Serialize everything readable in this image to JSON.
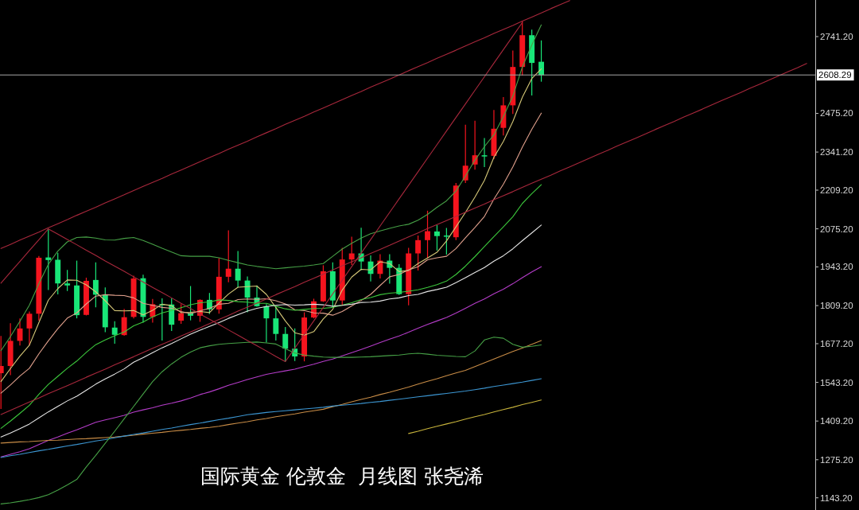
{
  "chart_data": {
    "type": "candlestick",
    "title": "国际黄金 伦敦金  月线图 张尧浠",
    "categories": [
      null,
      null,
      null,
      null,
      null,
      null,
      null,
      null,
      null,
      null,
      null,
      null,
      null,
      null,
      null,
      null,
      null,
      null,
      null,
      null,
      null,
      null,
      null,
      null,
      null,
      null,
      null,
      null,
      null,
      null,
      null,
      null,
      null,
      null,
      null,
      null,
      null,
      null,
      null,
      null,
      null,
      null,
      null,
      null,
      null,
      null,
      null,
      null,
      null,
      null,
      null,
      null,
      null,
      null,
      null,
      null,
      null,
      null,
      null,
      null,
      null,
      null,
      null,
      null,
      null,
      null,
      null,
      null,
      null,
      null,
      null,
      null,
      null,
      null,
      null,
      null,
      null,
      null,
      null,
      null,
      null,
      null,
      null,
      null,
      null,
      null
    ],
    "ohlc": [
      [
        1575,
        1704,
        1451,
        1600
      ],
      [
        1600,
        1748,
        1568,
        1687
      ],
      [
        1687,
        1765,
        1671,
        1730
      ],
      [
        1730,
        1789,
        1671,
        1781
      ],
      [
        1781,
        1981,
        1757,
        1975
      ],
      [
        1976,
        2075,
        1863,
        1967
      ],
      [
        1968,
        1992,
        1848,
        1886
      ],
      [
        1886,
        1933,
        1860,
        1879
      ],
      [
        1879,
        1965,
        1765,
        1776
      ],
      [
        1777,
        1906,
        1775,
        1895
      ],
      [
        1898,
        1959,
        1803,
        1847
      ],
      [
        1848,
        1872,
        1717,
        1734
      ],
      [
        1733,
        1755,
        1677,
        1708
      ],
      [
        1707,
        1798,
        1705,
        1769
      ],
      [
        1770,
        1913,
        1765,
        1903
      ],
      [
        1904,
        1916,
        1750,
        1770
      ],
      [
        1770,
        1832,
        1750,
        1814
      ],
      [
        1815,
        1834,
        1688,
        1814
      ],
      [
        1813,
        1834,
        1721,
        1743
      ],
      [
        1757,
        1814,
        1746,
        1783
      ],
      [
        1783,
        1877,
        1758,
        1774
      ],
      [
        1774,
        1831,
        1753,
        1829
      ],
      [
        1829,
        1853,
        1780,
        1796
      ],
      [
        1796,
        1974,
        1781,
        1909
      ],
      [
        1909,
        2070,
        1890,
        1937
      ],
      [
        1937,
        1998,
        1872,
        1896
      ],
      [
        1896,
        1910,
        1786,
        1837
      ],
      [
        1837,
        1879,
        1805,
        1807
      ],
      [
        1807,
        1814,
        1681,
        1765
      ],
      [
        1765,
        1808,
        1688,
        1711
      ],
      [
        1711,
        1735,
        1615,
        1660
      ],
      [
        1660,
        1730,
        1617,
        1633
      ],
      [
        1633,
        1786,
        1616,
        1768
      ],
      [
        1768,
        1833,
        1765,
        1824
      ],
      [
        1824,
        1949,
        1822,
        1928
      ],
      [
        1928,
        1959,
        1804,
        1827
      ],
      [
        1827,
        2009,
        1809,
        1969
      ],
      [
        1969,
        2048,
        1950,
        1990
      ],
      [
        1990,
        2079,
        1932,
        1962
      ],
      [
        1962,
        1983,
        1893,
        1919
      ],
      [
        1919,
        1987,
        1903,
        1965
      ],
      [
        1965,
        1987,
        1885,
        1940
      ],
      [
        1940,
        1953,
        1846,
        1849
      ],
      [
        1849,
        2009,
        1810,
        1990
      ],
      [
        1990,
        2052,
        1931,
        2036
      ],
      [
        2036,
        2138,
        1973,
        2067
      ],
      [
        2066,
        2088,
        2000,
        2050
      ],
      [
        2052,
        2078,
        1986,
        2049
      ],
      [
        2046,
        2234,
        2036,
        2225
      ],
      [
        2243,
        2436,
        2234,
        2294
      ],
      [
        2298,
        2450,
        2280,
        2330
      ],
      [
        2330,
        2390,
        2289,
        2327
      ],
      [
        2328,
        2487,
        2317,
        2422
      ],
      [
        2425,
        2532,
        2399,
        2503
      ],
      [
        2503,
        2693,
        2473,
        2636
      ],
      [
        2636,
        2794,
        2606,
        2746
      ],
      [
        2746,
        2765,
        2537,
        2650
      ],
      [
        2654,
        2728,
        2585,
        2608
      ],
      null,
      null,
      null,
      null,
      null,
      null,
      null,
      null,
      null,
      null,
      null,
      null,
      null,
      null,
      null,
      null,
      null,
      null,
      null,
      null,
      null,
      null,
      null,
      null,
      null,
      null,
      null,
      null
    ],
    "colors": [
      "#f5141e",
      "#f5141e",
      "#f5141e",
      "#f5141e",
      "#f5141e",
      "#19e678",
      "#19e678",
      "#19e678",
      "#19e678",
      "#f5141e",
      "#19e678",
      "#19e678",
      "#19e678",
      "#f5141e",
      "#f5141e",
      "#19e678",
      "#f5141e",
      "#19e678",
      "#19e678",
      "#f5141e",
      "#19e678",
      "#f5141e",
      "#19e678",
      "#f5141e",
      "#f5141e",
      "#19e678",
      "#19e678",
      "#19e678",
      "#19e678",
      "#19e678",
      "#19e678",
      "#19e678",
      "#f5141e",
      "#f5141e",
      "#f5141e",
      "#19e678",
      "#f5141e",
      "#f5141e",
      "#19e678",
      "#19e678",
      "#f5141e",
      "#19e678",
      "#19e678",
      "#f5141e",
      "#f5141e",
      "#f5141e",
      "#19e678",
      "#19e678",
      "#f5141e",
      "#f5141e",
      "#f5141e",
      "#19e678",
      "#f5141e",
      "#f5141e",
      "#f5141e",
      "#f5141e",
      "#19e678",
      "#19e678",
      null,
      null,
      null,
      null,
      null,
      null,
      null,
      null,
      null,
      null,
      null,
      null,
      null,
      null,
      null,
      null,
      null,
      null,
      null,
      null,
      null,
      null,
      null,
      null,
      null,
      null,
      null,
      null
    ],
    "series": [
      {
        "type": "line",
        "color": "#d6c878",
        "values": [
          1546,
          1591,
          1634,
          1672,
          1750,
          1828,
          1868,
          1898,
          1897,
          1881,
          1857,
          1826,
          1792,
          1791,
          1792,
          1777,
          1793,
          1814,
          1809,
          1785,
          1786,
          1789,
          1785,
          1818,
          1849,
          1873,
          1875,
          1877,
          1848,
          1803,
          1756,
          1715,
          1707,
          1719,
          1763,
          1796,
          1863,
          1908,
          1935,
          1933,
          1961,
          1955,
          1927,
          1931,
          1955,
          1974,
          1994,
          2033,
          2082,
          2132,
          2185,
          2243,
          2323,
          2378,
          2447,
          2531,
          2596,
          2629,
          null,
          null,
          null,
          null,
          null,
          null,
          null,
          null,
          null,
          null,
          null,
          null,
          null,
          null,
          null,
          null,
          null,
          null,
          null,
          null,
          null,
          null,
          null,
          null,
          null,
          null,
          null,
          null
        ]
      },
      {
        "type": "line",
        "color": "#e0a08c",
        "values": [
          1506,
          1534,
          1565,
          1592,
          1642,
          1687,
          1729,
          1766,
          1784,
          1815,
          1842,
          1847,
          1845,
          1844,
          1836,
          1817,
          1810,
          1803,
          1800,
          1789,
          1781,
          1791,
          1800,
          1814,
          1817,
          1830,
          1832,
          1831,
          1833,
          1826,
          1815,
          1795,
          1792,
          1784,
          1783,
          1776,
          1789,
          1808,
          1827,
          1848,
          1879,
          1909,
          1917,
          1933,
          1944,
          1968,
          1975,
          1980,
          2007,
          2044,
          2080,
          2118,
          2178,
          2230,
          2290,
          2358,
          2420,
          2476,
          null,
          null,
          null,
          null,
          null,
          null,
          null,
          null,
          null,
          null,
          null,
          null,
          null,
          null,
          null,
          null,
          null,
          null,
          null,
          null,
          null,
          null,
          null,
          null,
          null,
          null,
          null,
          null
        ]
      },
      {
        "type": "line",
        "color": "#3cc83c",
        "values": [
          1384,
          1409,
          1436,
          1464,
          1502,
          1536,
          1564,
          1592,
          1617,
          1647,
          1674,
          1690,
          1705,
          1718,
          1739,
          1752,
          1770,
          1784,
          1792,
          1802,
          1812,
          1819,
          1822,
          1829,
          1827,
          1823,
          1821,
          1817,
          1817,
          1807,
          1798,
          1793,
          1796,
          1799,
          1800,
          1803,
          1811,
          1819,
          1830,
          1837,
          1847,
          1852,
          1855,
          1859,
          1864,
          1872,
          1882,
          1894,
          1917,
          1946,
          1979,
          2014,
          2048,
          2082,
          2117,
          2163,
          2197,
          2228,
          null,
          null,
          null,
          null,
          null,
          null,
          null,
          null,
          null,
          null,
          null,
          null,
          null,
          null,
          null,
          null,
          null,
          null,
          null,
          null,
          null,
          null,
          null,
          null,
          null,
          null,
          null,
          null
        ]
      },
      {
        "type": "line",
        "color": "#e6e6e6",
        "values": [
          1354,
          1368,
          1383,
          1399,
          1420,
          1441,
          1460,
          1479,
          1495,
          1516,
          1537,
          1555,
          1572,
          1590,
          1613,
          1629,
          1646,
          1663,
          1678,
          1694,
          1710,
          1724,
          1737,
          1750,
          1765,
          1778,
          1790,
          1800,
          1806,
          1810,
          1813,
          1811,
          1812,
          1814,
          1812,
          1807,
          1810,
          1814,
          1820,
          1821,
          1825,
          1832,
          1836,
          1844,
          1848,
          1858,
          1865,
          1873,
          1889,
          1906,
          1924,
          1941,
          1963,
          1982,
          2006,
          2034,
          2061,
          2088,
          null,
          null,
          null,
          null,
          null,
          null,
          null,
          null,
          null,
          null,
          null,
          null,
          null,
          null,
          null,
          null,
          null,
          null,
          null,
          null,
          null,
          null,
          null,
          null,
          null,
          null,
          null,
          null
        ]
      },
      {
        "type": "line",
        "color": "#b43cc8",
        "values": [
          1285,
          1294,
          1303,
          1313,
          1328,
          1342,
          1354,
          1367,
          1379,
          1392,
          1405,
          1413,
          1421,
          1429,
          1440,
          1448,
          1455,
          1464,
          1471,
          1479,
          1489,
          1501,
          1510,
          1521,
          1533,
          1543,
          1553,
          1562,
          1571,
          1577,
          1583,
          1589,
          1598,
          1606,
          1616,
          1624,
          1635,
          1646,
          1657,
          1669,
          1681,
          1693,
          1704,
          1717,
          1731,
          1744,
          1756,
          1768,
          1783,
          1800,
          1817,
          1832,
          1850,
          1866,
          1885,
          1906,
          1926,
          1944,
          null,
          null,
          null,
          null,
          null,
          null,
          null,
          null,
          null,
          null,
          null,
          null,
          null,
          null,
          null,
          null,
          null,
          null,
          null,
          null,
          null,
          null,
          null,
          null,
          null,
          null,
          null,
          null
        ]
      },
      {
        "type": "line",
        "color": "#c88c46",
        "values": [
          1333,
          1335,
          1337,
          1338,
          1340,
          1342,
          1343,
          1345,
          1347,
          1348,
          1350,
          1352,
          1354,
          1357,
          1360,
          1364,
          1367,
          1370,
          1374,
          1377,
          1380,
          1384,
          1387,
          1391,
          1397,
          1402,
          1407,
          1413,
          1418,
          1424,
          1429,
          1434,
          1440,
          1445,
          1450,
          1459,
          1467,
          1476,
          1484,
          1492,
          1501,
          1509,
          1518,
          1527,
          1537,
          1547,
          1556,
          1566,
          1576,
          1585,
          1598,
          1611,
          1624,
          1637,
          1650,
          1662,
          1675,
          1688,
          null,
          null,
          null,
          null,
          null,
          null,
          null,
          null,
          null,
          null,
          null,
          null,
          null,
          null,
          null,
          null,
          null,
          null,
          null,
          null,
          null,
          null,
          null,
          null,
          null,
          null,
          null,
          null
        ]
      },
      {
        "type": "line",
        "color": "#3c96d2",
        "values": [
          1283,
          1289,
          1294,
          1300,
          1306,
          1311,
          1317,
          1323,
          1328,
          1334,
          1340,
          1345,
          1351,
          1357,
          1363,
          1368,
          1374,
          1380,
          1385,
          1391,
          1397,
          1402,
          1408,
          1414,
          1419,
          1425,
          1431,
          1435,
          1439,
          1442,
          1445,
          1448,
          1451,
          1454,
          1457,
          1461,
          1464,
          1467,
          1470,
          1474,
          1477,
          1481,
          1485,
          1489,
          1493,
          1497,
          1501,
          1505,
          1509,
          1513,
          1518,
          1523,
          1529,
          1534,
          1539,
          1544,
          1550,
          1556,
          null,
          null,
          null,
          null,
          null,
          null,
          null,
          null,
          null,
          null,
          null,
          null,
          null,
          null,
          null,
          null,
          null,
          null,
          null,
          null,
          null,
          null,
          null,
          null,
          null,
          null,
          null,
          null
        ]
      },
      {
        "type": "line",
        "color": "#c8b43c",
        "values": [
          null,
          null,
          null,
          null,
          null,
          null,
          null,
          null,
          null,
          null,
          null,
          null,
          null,
          null,
          null,
          null,
          null,
          null,
          null,
          null,
          null,
          null,
          null,
          null,
          null,
          null,
          null,
          null,
          null,
          null,
          null,
          null,
          null,
          null,
          null,
          null,
          null,
          null,
          null,
          null,
          null,
          null,
          null,
          1366,
          1374,
          1383,
          1391,
          1399,
          1407,
          1416,
          1424,
          1432,
          1441,
          1449,
          1457,
          1466,
          1474,
          1482,
          null,
          null,
          null,
          null,
          null,
          null,
          null,
          null,
          null,
          null,
          null,
          null,
          null,
          null,
          null,
          null,
          null,
          null,
          null,
          null,
          null,
          null,
          null,
          null,
          null,
          null,
          null,
          null
        ]
      },
      {
        "type": "line",
        "color": "#46a046",
        "values": [
          1653,
          1702,
          1755,
          1811,
          1885,
          1952,
          1998,
          2030,
          2045,
          2047,
          2043,
          2037,
          2036,
          2042,
          2045,
          2035,
          2022,
          2008,
          1995,
          1982,
          1980,
          1980,
          1980,
          1975,
          1966,
          1958,
          1950,
          1945,
          1941,
          1937,
          1940,
          1943,
          1946,
          1950,
          1955,
          1980,
          2005,
          2025,
          2043,
          2058,
          2068,
          2077,
          2085,
          2091,
          2105,
          2125,
          2150,
          2172,
          2206,
          2258,
          2313,
          2360,
          2401,
          2464,
          2535,
          2636,
          2712,
          2782,
          null,
          null,
          null,
          null,
          null,
          null,
          null,
          null,
          null,
          null,
          null,
          null,
          null,
          null,
          null,
          null,
          null,
          null,
          null,
          null,
          null,
          null,
          null,
          null,
          null,
          null,
          null,
          null
        ]
      },
      {
        "type": "line",
        "color": "#46a046",
        "values": [
          1122,
          1126,
          1131,
          1137,
          1144,
          1154,
          1170,
          1188,
          1207,
          1250,
          1290,
          1332,
          1374,
          1417,
          1460,
          1503,
          1546,
          1580,
          1607,
          1630,
          1648,
          1663,
          1670,
          1675,
          1678,
          1680,
          1682,
          1683,
          1680,
          1676,
          1660,
          1645,
          1638,
          1634,
          1631,
          1630,
          1630,
          1630,
          1631,
          1632,
          1634,
          1636,
          1638,
          1642,
          1644,
          1641,
          1637,
          1635,
          1633,
          1632,
          1652,
          1690,
          1700,
          1696,
          1675,
          1665,
          1668,
          1673,
          null,
          null,
          null,
          null,
          null,
          null,
          null,
          null,
          null,
          null,
          null,
          null,
          null,
          null,
          null,
          null,
          null,
          null,
          null,
          null,
          null,
          null,
          null,
          null,
          null,
          null,
          null,
          null
        ]
      },
      {
        "type": "line",
        "color": "#a8283c",
        "values": [
          2007,
          2021,
          2036,
          2050,
          2064,
          2079,
          2093,
          2107,
          2122,
          2136,
          2150,
          2165,
          2179,
          2193,
          2208,
          2222,
          2236,
          2250,
          2265,
          2279,
          2293,
          2308,
          2322,
          2336,
          2351,
          2365,
          2379,
          2394,
          2408,
          2422,
          2437,
          2451,
          2465,
          2480,
          2494,
          2508,
          2523,
          2537,
          2551,
          2566,
          2580,
          2594,
          2608,
          2623,
          2637,
          2651,
          2666,
          2680,
          2694,
          2709,
          2723,
          2737,
          2752,
          2766,
          2780,
          2795,
          2809,
          2823,
          2838,
          2852,
          2866,
          null,
          null,
          null,
          null,
          null,
          null,
          null,
          null,
          null,
          null,
          null,
          null,
          null,
          null,
          null,
          null,
          null,
          null,
          null,
          null,
          null,
          null,
          null,
          null,
          null
        ]
      },
      {
        "type": "line",
        "color": "#a8283c",
        "values": [
          1432,
          1446,
          1461,
          1475,
          1489,
          1504,
          1518,
          1532,
          1546,
          1561,
          1575,
          1589,
          1604,
          1618,
          1632,
          1647,
          1661,
          1675,
          1689,
          1704,
          1718,
          1732,
          1747,
          1761,
          1775,
          1790,
          1804,
          1818,
          1832,
          1847,
          1861,
          1875,
          1890,
          1904,
          1918,
          1933,
          1947,
          1961,
          1975,
          1990,
          2004,
          2018,
          2033,
          2047,
          2061,
          2076,
          2090,
          2104,
          2118,
          2133,
          2147,
          2161,
          2176,
          2190,
          2204,
          2219,
          2233,
          2247,
          2261,
          2276,
          2290,
          2304,
          2319,
          2333,
          2347,
          2362,
          2376,
          2390,
          2404,
          2419,
          2433,
          2447,
          2462,
          2476,
          2490,
          2505,
          2519,
          2533,
          2547,
          2562,
          2576,
          2590,
          2605,
          2619,
          2633,
          2648
        ]
      },
      {
        "type": "line",
        "color": "#a8283c",
        "values": [
          1887,
          1925,
          1962,
          2000,
          2037,
          2075,
          2057,
          2038,
          2020,
          2001,
          1983,
          1964,
          1946,
          1928,
          1909,
          1891,
          1872,
          1854,
          1836,
          1817,
          1799,
          1780,
          1762,
          1744,
          1725,
          1707,
          1688,
          1670,
          1652,
          1633,
          1615,
          1662,
          1709,
          1756,
          1803,
          1850,
          1897,
          1944,
          1991,
          2038,
          2085,
          2132,
          2179,
          2226,
          2273,
          2320,
          2367,
          2414,
          2461,
          2508,
          2555,
          2602,
          2649,
          2696,
          2743,
          2790,
          null,
          null,
          null,
          null,
          null,
          null,
          null,
          null,
          null,
          null,
          null,
          null,
          null,
          null,
          null,
          null,
          null,
          null,
          null,
          null,
          null,
          null,
          null,
          null,
          null,
          null,
          null,
          null,
          null,
          null
        ]
      }
    ],
    "ylim": [
      1101,
      2868
    ],
    "yticks": [
      {
        "value": 2741.2,
        "label": "2741.20"
      },
      {
        "value": 2475.2,
        "label": "2475.20"
      },
      {
        "value": 2341.2,
        "label": "2341.20"
      },
      {
        "value": 2209.2,
        "label": "2209.20"
      },
      {
        "value": 2075.2,
        "label": "2075.20"
      },
      {
        "value": 1943.2,
        "label": "1943.20"
      },
      {
        "value": 1809.2,
        "label": "1809.20"
      },
      {
        "value": 1677.2,
        "label": "1677.20"
      },
      {
        "value": 1543.2,
        "label": "1543.20"
      },
      {
        "value": 1409.2,
        "label": "1409.20"
      },
      {
        "value": 1275.2,
        "label": "1275.20"
      },
      {
        "value": 1143.2,
        "label": "1143.20"
      }
    ],
    "tick_labels": "y",
    "ref_lines": [
      {
        "axis": "y",
        "value": 2608.29,
        "label": "2608.29",
        "color": "#a8a8a8"
      }
    ]
  }
}
